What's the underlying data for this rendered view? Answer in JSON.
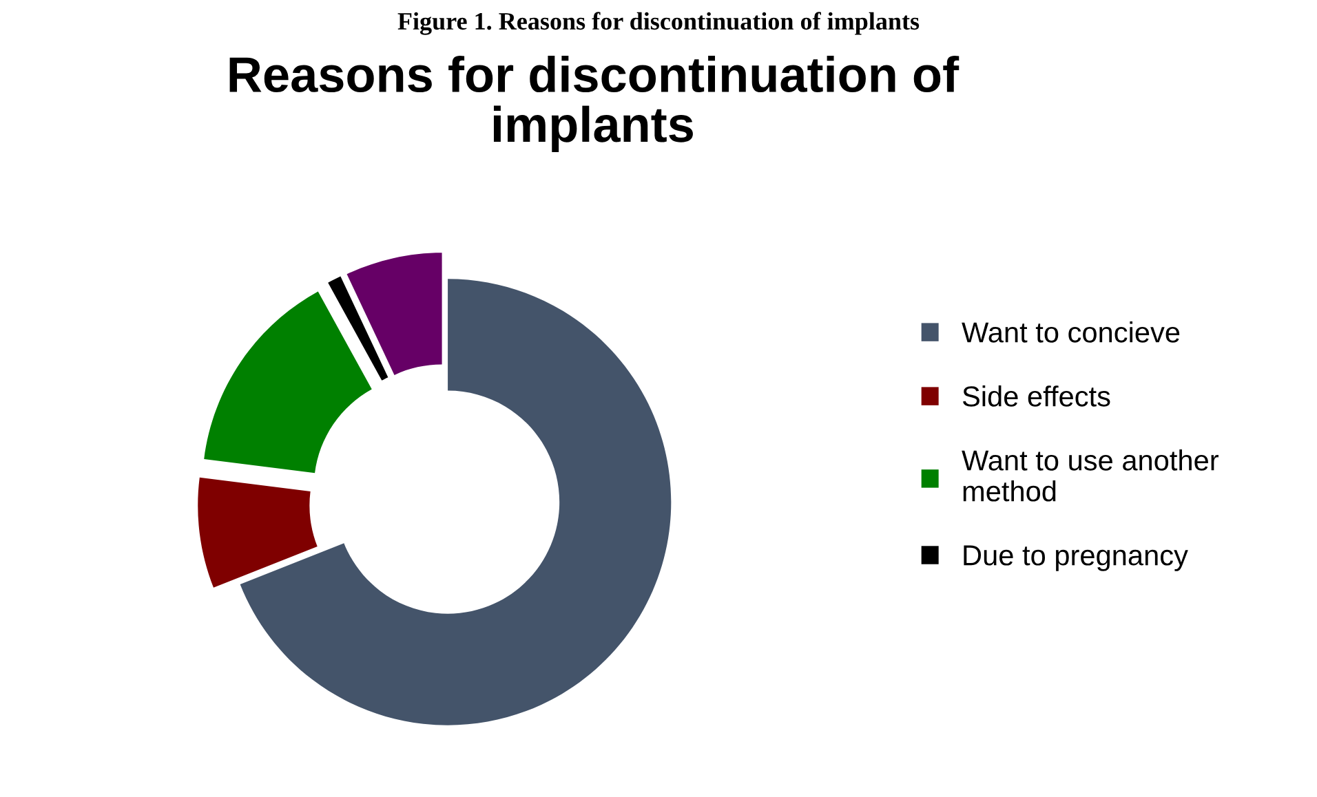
{
  "chart_data": {
    "type": "donut",
    "title": "Reasons for discontinuation of implants",
    "annotations": [
      "Figure 1. Reasons for discontinuation of implants"
    ],
    "categories": [
      "Want to concieve",
      "Side effects",
      "Want to use another method",
      "Due to pregnancy",
      null
    ],
    "values": [
      69,
      8,
      15,
      1,
      7
    ],
    "colors": [
      "#44546a",
      "#7f0000",
      "#008000",
      "#000000",
      "#660066"
    ],
    "legend": "right"
  }
}
